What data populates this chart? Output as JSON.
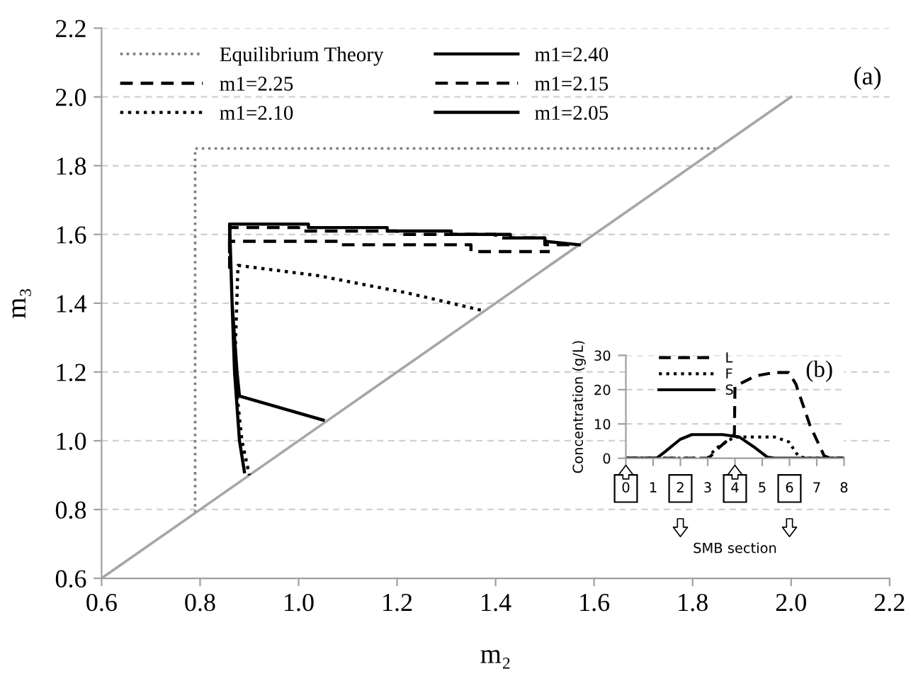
{
  "chart_data": [
    {
      "type": "line",
      "xlabel": "m₂",
      "ylabel": "m₃",
      "xlim": [
        0.6,
        2.2
      ],
      "ylim": [
        0.6,
        2.2
      ],
      "xticks": [
        0.6,
        0.8,
        {
          "value": 1,
          "label": "1.0"
        },
        1.2,
        1.4,
        1.6,
        1.8,
        {
          "value": 2,
          "label": "2.0"
        },
        2.2
      ],
      "yticks": [
        0.6,
        0.8,
        {
          "value": 1,
          "label": "1.0"
        },
        1.2,
        1.4,
        1.6,
        1.8,
        {
          "value": 2,
          "label": "2.0"
        },
        2.2
      ],
      "grid": "y",
      "legend": "top left",
      "annotations": [
        "(a)"
      ],
      "series": [
        {
          "name": "Equilibrium Theory",
          "color": "#808080",
          "line_style": "dotted",
          "x": [
            0.79,
            0.79,
            1.85
          ],
          "values": [
            0.79,
            1.85,
            1.85
          ]
        },
        {
          "color": "#a6a6a6",
          "line_style": "solid",
          "x": [
            0.6,
            2.0
          ],
          "values": [
            0.6,
            2.0
          ]
        },
        {
          "name": "m1=2.40",
          "color": "#000000",
          "line_style": "solid",
          "x": [
            0.86,
            0.86,
            1.02,
            1.02,
            1.18,
            1.18,
            1.31,
            1.31,
            1.43,
            1.43,
            1.5,
            1.5,
            1.57
          ],
          "values": [
            1.55,
            1.63,
            1.63,
            1.62,
            1.62,
            1.61,
            1.61,
            1.6,
            1.6,
            1.59,
            1.59,
            1.58,
            1.57
          ]
        },
        {
          "name": "m1=2.25",
          "color": "#000000",
          "line_style": "dashed",
          "x": [
            0.86,
            0.86,
            1.0,
            1.0,
            1.2,
            1.2,
            1.4,
            1.4,
            1.5,
            1.5,
            1.56
          ],
          "values": [
            1.55,
            1.62,
            1.62,
            1.61,
            1.61,
            1.6,
            1.6,
            1.59,
            1.59,
            1.57,
            1.57
          ]
        },
        {
          "name": "m1=2.15",
          "color": "#000000",
          "line_style": "dashed",
          "x": [
            0.86,
            0.86,
            1.08,
            1.08,
            1.35,
            1.35,
            1.51
          ],
          "values": [
            1.5,
            1.58,
            1.58,
            1.57,
            1.57,
            1.55,
            1.55
          ]
        },
        {
          "name": "m1=2.10",
          "color": "#000000",
          "line_style": "dotted",
          "x": [
            1.37,
            1.22,
            1.04,
            0.877,
            0.87,
            0.885,
            0.9
          ],
          "values": [
            1.38,
            1.43,
            1.48,
            1.51,
            1.2,
            1.0,
            0.9
          ]
        },
        {
          "name": "m1=2.05",
          "color": "#000000",
          "line_style": "solid",
          "x": [
            1.05,
            0.88,
            0.875,
            0.865,
            0.86,
            0.865,
            0.87,
            0.88,
            0.89
          ],
          "values": [
            1.06,
            1.13,
            1.2,
            1.4,
            1.63,
            1.4,
            1.2,
            1.0,
            0.91
          ]
        }
      ]
    },
    {
      "type": "line",
      "xlabel": "SMB section",
      "ylabel": "Concentration (g/L)",
      "xlim": [
        0,
        8
      ],
      "ylim": [
        0,
        30
      ],
      "xticks": [
        0,
        1,
        2,
        3,
        4,
        5,
        6,
        7,
        8
      ],
      "yticks": [
        0,
        10,
        20,
        30
      ],
      "grid": "y",
      "legend": "top left",
      "annotations": [
        "(b)"
      ],
      "series": [
        {
          "name": "L",
          "color": "#000000",
          "line_style": "dashed",
          "x": [
            0,
            3.03,
            3.46,
            3.98,
            4.0,
            4.76,
            5.45,
            5.97,
            6.23,
            6.75,
            7.27,
            7.5,
            8
          ],
          "values": [
            0,
            0,
            3.4,
            7,
            21,
            24,
            25,
            25,
            21.7,
            9.6,
            0.7,
            0,
            0
          ]
        },
        {
          "name": "F",
          "color": "#000000",
          "line_style": "dotted",
          "x": [
            0,
            3.0,
            3.29,
            3.98,
            5.45,
            5.97,
            6.32,
            6.58,
            8
          ],
          "values": [
            0,
            0,
            2.8,
            6.2,
            6.2,
            4.8,
            0.7,
            0,
            0
          ]
        },
        {
          "name": "S",
          "color": "#000000",
          "line_style": "solid",
          "x": [
            0,
            1.13,
            1.47,
            1.99,
            2.42,
            3.55,
            4.16,
            4.68,
            5.19,
            5.45,
            8
          ],
          "values": [
            0,
            0,
            2.1,
            5.5,
            6.9,
            6.9,
            6.2,
            3.4,
            0.3,
            0,
            0
          ]
        }
      ]
    }
  ]
}
